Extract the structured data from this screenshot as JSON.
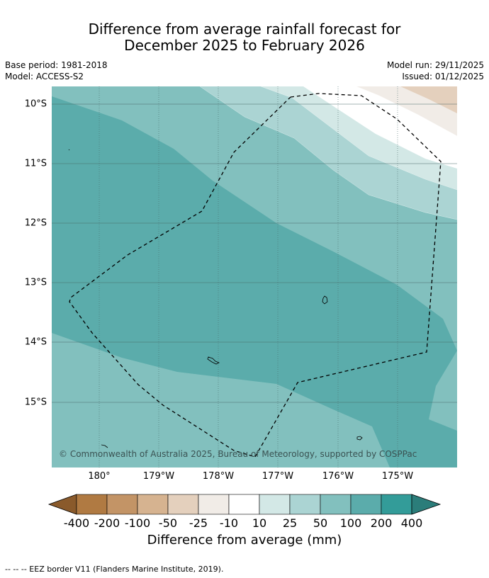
{
  "title_line1": "Difference from average rainfall forecast for",
  "title_line2": "December 2025 to February 2026",
  "meta_left": [
    "Base period: 1981-2018",
    "Model: ACCESS-S2"
  ],
  "meta_right": [
    "Model run: 29/11/2025",
    "Issued: 01/12/2025"
  ],
  "lat_ticks": [
    "10°S",
    "11°S",
    "12°S",
    "13°S",
    "14°S",
    "15°S"
  ],
  "lon_ticks": [
    "180°",
    "179°W",
    "178°W",
    "177°W",
    "176°W",
    "175°W"
  ],
  "copyright": "© Commonwealth of Australia 2025, Bureau of Meteorology, supported by COSPPac",
  "colorbar": {
    "labels": [
      "-400",
      "-200",
      "-100",
      "-50",
      "-25",
      "-10",
      "10",
      "25",
      "50",
      "100",
      "200",
      "400"
    ],
    "colors": [
      "#8a5a2b",
      "#b07a42",
      "#c39466",
      "#d6b390",
      "#e4d0bd",
      "#f1ece7",
      "#ffffff",
      "#d3e8e6",
      "#abd4d3",
      "#82c0be",
      "#5bacab",
      "#339c99",
      "#2b7d7a"
    ],
    "title": "Difference from average (mm)"
  },
  "map_colors": {
    "c50": "#82c0be",
    "c100": "#5bacab",
    "c25": "#abd4d3",
    "c10": "#d3e8e6",
    "cwhite": "#ffffff",
    "cneg10": "#f1ece7",
    "cneg25": "#e4d0bd"
  },
  "footnote": "--  --  -- EEZ border V11 (Flanders Marine Institute, 2019)."
}
